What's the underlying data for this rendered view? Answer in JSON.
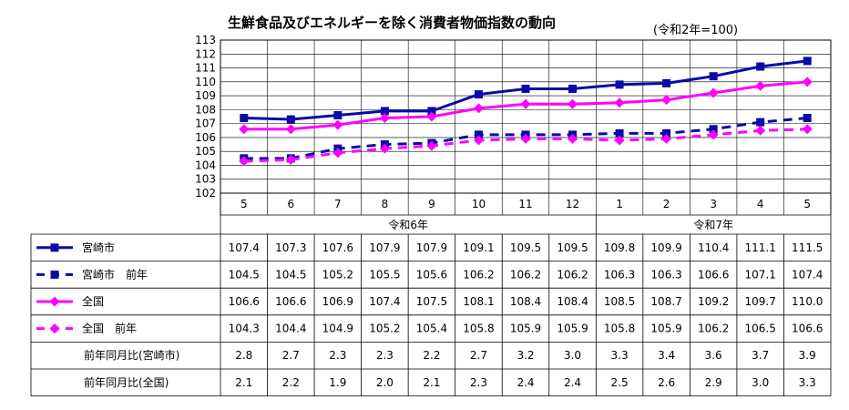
{
  "chart_data": {
    "type": "line",
    "title": "生鮮食品及びエネルギーを除く消費者物価指数の動向",
    "subtitle": "(令和2年=100)",
    "categories": [
      "5",
      "6",
      "7",
      "8",
      "9",
      "10",
      "11",
      "12",
      "1",
      "2",
      "3",
      "4",
      "5"
    ],
    "year_groups": [
      {
        "label": "令和6年",
        "span": 8
      },
      {
        "label": "令和7年",
        "span": 5
      }
    ],
    "ylim": [
      102,
      113
    ],
    "yticks": [
      102,
      103,
      104,
      105,
      106,
      107,
      108,
      109,
      110,
      111,
      112,
      113
    ],
    "grid": true,
    "series": [
      {
        "name": "宮崎市",
        "color": "#0a0aa8",
        "dashed": false,
        "marker": "square",
        "values": [
          107.4,
          107.3,
          107.6,
          107.9,
          107.9,
          109.1,
          109.5,
          109.5,
          109.8,
          109.9,
          110.4,
          111.1,
          111.5
        ]
      },
      {
        "name": "宮崎市　前年",
        "color": "#0a0aa8",
        "dashed": true,
        "marker": "square",
        "values": [
          104.5,
          104.5,
          105.2,
          105.5,
          105.6,
          106.2,
          106.2,
          106.2,
          106.3,
          106.3,
          106.6,
          107.1,
          107.4
        ]
      },
      {
        "name": "全国",
        "color": "#ff00ff",
        "dashed": false,
        "marker": "diamond",
        "values": [
          106.6,
          106.6,
          106.9,
          107.4,
          107.5,
          108.1,
          108.4,
          108.4,
          108.5,
          108.7,
          109.2,
          109.7,
          110.0
        ]
      },
      {
        "name": "全国　前年",
        "color": "#ff00ff",
        "dashed": true,
        "marker": "diamond",
        "values": [
          104.3,
          104.4,
          104.9,
          105.2,
          105.4,
          105.8,
          105.9,
          105.9,
          105.8,
          105.9,
          106.2,
          106.5,
          106.6
        ]
      }
    ],
    "table_rows": [
      {
        "label": "前年同月比(宮崎市)",
        "values": [
          "2.8",
          "2.7",
          "2.3",
          "2.3",
          "2.2",
          "2.7",
          "3.2",
          "3.0",
          "3.3",
          "3.4",
          "3.6",
          "3.7",
          "3.9"
        ]
      },
      {
        "label": "前年同月比(全国)",
        "values": [
          "2.1",
          "2.2",
          "1.9",
          "2.0",
          "2.1",
          "2.3",
          "2.4",
          "2.4",
          "2.5",
          "2.6",
          "2.9",
          "3.0",
          "3.3"
        ]
      }
    ]
  }
}
